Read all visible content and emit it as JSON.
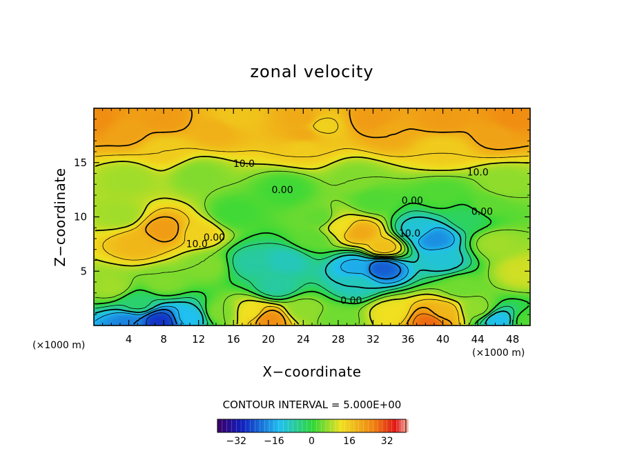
{
  "chart_data": {
    "type": "heatmap",
    "title": "zonal velocity",
    "xlabel": "X−coordinate",
    "ylabel": "Z−coordinate",
    "x_unit_left": "(×1000 m)",
    "x_unit_right": "(×1000 m)",
    "xlim": [
      0,
      50
    ],
    "ylim": [
      0,
      20
    ],
    "x_ticks": [
      4,
      8,
      12,
      16,
      20,
      24,
      28,
      32,
      36,
      40,
      44,
      48
    ],
    "y_ticks": [
      5,
      10,
      15
    ],
    "contour_interval_text": "CONTOUR INTERVAL = 5.000E+00",
    "contour_interval": 5.0,
    "colorbar": {
      "range": [
        -40,
        40
      ],
      "ticks": [
        -32,
        -16,
        0,
        16,
        32
      ],
      "tick_labels": [
        "−32",
        "−16",
        "0",
        "16",
        "32"
      ],
      "colors": [
        "#3a006a",
        "#1020c0",
        "#20c0f0",
        "#30d838",
        "#f0e020",
        "#f08010",
        "#e01818",
        "#f8b0a0"
      ]
    },
    "contour_labels": [
      {
        "text": "10.0",
        "x": 17.2,
        "z": 14.6
      },
      {
        "text": "10.0",
        "x": 44.0,
        "z": 13.8
      },
      {
        "text": "0.00",
        "x": 21.6,
        "z": 12.2
      },
      {
        "text": "0.00",
        "x": 36.5,
        "z": 11.2
      },
      {
        "text": "0.00",
        "x": 44.5,
        "z": 10.2
      },
      {
        "text": "10.0",
        "x": 11.8,
        "z": 7.2
      },
      {
        "text": "0.00",
        "x": 13.8,
        "z": 7.8
      },
      {
        "text": "10.0",
        "x": 36.2,
        "z": 8.2
      },
      {
        "text": "0.00",
        "x": 29.5,
        "z": 2.0
      }
    ],
    "field_features": [
      {
        "x": 0,
        "z": 19,
        "u": 24
      },
      {
        "x": 8,
        "z": 19,
        "u": 22
      },
      {
        "x": 16,
        "z": 19.2,
        "u": 16
      },
      {
        "x": 24,
        "z": 19,
        "u": 20
      },
      {
        "x": 32,
        "z": 19,
        "u": 22
      },
      {
        "x": 40,
        "z": 19,
        "u": 22
      },
      {
        "x": 48,
        "z": 19,
        "u": 24
      },
      {
        "x": 4,
        "z": 17.8,
        "u": 21
      },
      {
        "x": 14,
        "z": 18,
        "u": 19
      },
      {
        "x": 24,
        "z": 17.6,
        "u": 20
      },
      {
        "x": 34,
        "z": 17.8,
        "u": 20
      },
      {
        "x": 46,
        "z": 17.6,
        "u": 21
      },
      {
        "x": 26,
        "z": 18.4,
        "u": 14
      },
      {
        "x": 8,
        "z": 16.2,
        "u": 15
      },
      {
        "x": 24,
        "z": 16.4,
        "u": 15
      },
      {
        "x": 40,
        "z": 16.2,
        "u": 15
      },
      {
        "x": 4,
        "z": 13.5,
        "u": 7
      },
      {
        "x": 12,
        "z": 13.8,
        "u": 5
      },
      {
        "x": 22,
        "z": 12.5,
        "u": 1
      },
      {
        "x": 30,
        "z": 13.5,
        "u": 5
      },
      {
        "x": 40,
        "z": 12,
        "u": 2
      },
      {
        "x": 47,
        "z": 13,
        "u": 6
      },
      {
        "x": 8,
        "z": 8.8,
        "u": 22
      },
      {
        "x": 5,
        "z": 7.5,
        "u": 18
      },
      {
        "x": 12,
        "z": 8.5,
        "u": 14
      },
      {
        "x": 3,
        "z": 10.2,
        "u": 7
      },
      {
        "x": 13,
        "z": 5.5,
        "u": 5
      },
      {
        "x": 18,
        "z": 5.8,
        "u": -8
      },
      {
        "x": 22,
        "z": 6,
        "u": -10
      },
      {
        "x": 21,
        "z": 3.6,
        "u": -8
      },
      {
        "x": 26,
        "z": 9.8,
        "u": 3
      },
      {
        "x": 30.5,
        "z": 8.6,
        "u": 20
      },
      {
        "x": 28,
        "z": 9.2,
        "u": 12
      },
      {
        "x": 33.2,
        "z": 7.2,
        "u": 17
      },
      {
        "x": 33,
        "z": 5.3,
        "u": -24
      },
      {
        "x": 30,
        "z": 5.4,
        "u": -16
      },
      {
        "x": 30,
        "z": 3.8,
        "u": -10
      },
      {
        "x": 37,
        "z": 8.8,
        "u": -12
      },
      {
        "x": 39,
        "z": 8,
        "u": -19
      },
      {
        "x": 40,
        "z": 6,
        "u": -12
      },
      {
        "x": 43,
        "z": 10,
        "u": -3
      },
      {
        "x": 46,
        "z": 7.5,
        "u": 7
      },
      {
        "x": 49,
        "z": 5,
        "u": 10
      },
      {
        "x": 42,
        "z": 3.5,
        "u": 4
      },
      {
        "x": 2,
        "z": 3.5,
        "u": 7
      },
      {
        "x": 8,
        "z": 4,
        "u": 5
      },
      {
        "x": 5,
        "z": 2,
        "u": -4
      },
      {
        "x": 7.5,
        "z": 0.4,
        "u": -28
      },
      {
        "x": 4,
        "z": 0.3,
        "u": -20
      },
      {
        "x": 11,
        "z": 0.8,
        "u": -14
      },
      {
        "x": 14.5,
        "z": 1.2,
        "u": 5
      },
      {
        "x": 20,
        "z": 0.6,
        "u": 24
      },
      {
        "x": 18,
        "z": 1.2,
        "u": 12
      },
      {
        "x": 24,
        "z": 1.5,
        "u": 6
      },
      {
        "x": 28,
        "z": 0.6,
        "u": 4
      },
      {
        "x": 34,
        "z": 1.2,
        "u": 12
      },
      {
        "x": 38.5,
        "z": 0.4,
        "u": 28
      },
      {
        "x": 40,
        "z": 1.2,
        "u": 18
      },
      {
        "x": 44,
        "z": 1.5,
        "u": 6
      },
      {
        "x": 46.5,
        "z": 0.5,
        "u": -14
      },
      {
        "x": 49.5,
        "z": 0.4,
        "u": 2
      },
      {
        "x": 25,
        "z": 8,
        "u": 3
      },
      {
        "x": 16,
        "z": 10.3,
        "u": 1
      },
      {
        "x": 32,
        "z": 11.5,
        "u": 2
      },
      {
        "x": 45,
        "z": 11,
        "u": 3
      }
    ]
  }
}
